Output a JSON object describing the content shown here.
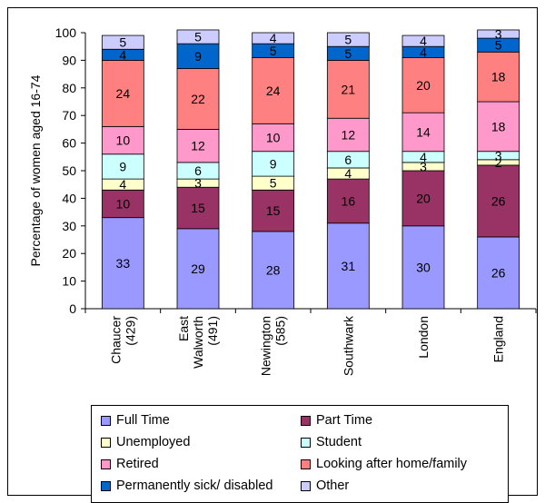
{
  "chart_data": {
    "type": "bar",
    "stacked": true,
    "ylabel": "Percentage of women aged 16-74",
    "ylim": [
      0,
      100
    ],
    "yticks": [
      0,
      10,
      20,
      30,
      40,
      50,
      60,
      70,
      80,
      90,
      100
    ],
    "categories": [
      [
        "Chaucer",
        "(429)"
      ],
      [
        "East",
        "Walworth",
        "(491)"
      ],
      [
        "Newington",
        "(585)"
      ],
      [
        "Southwark"
      ],
      [
        "London"
      ],
      [
        "England"
      ]
    ],
    "series": [
      {
        "name": "Full Time",
        "color": "#9999ff",
        "values": [
          33,
          29,
          28,
          31,
          30,
          26
        ]
      },
      {
        "name": "Part Time",
        "color": "#993366",
        "values": [
          10,
          15,
          15,
          16,
          20,
          26
        ]
      },
      {
        "name": "Unemployed",
        "color": "#ffffcc",
        "values": [
          4,
          3,
          5,
          4,
          3,
          2
        ]
      },
      {
        "name": "Student",
        "color": "#ccffff",
        "values": [
          9,
          6,
          9,
          6,
          4,
          3
        ]
      },
      {
        "name": "Retired",
        "color": "#ff99cc",
        "values": [
          10,
          12,
          10,
          12,
          14,
          18
        ]
      },
      {
        "name": "Looking after home/family",
        "color": "#ff8080",
        "values": [
          24,
          22,
          24,
          21,
          20,
          18
        ]
      },
      {
        "name": "Permanently sick/ disabled",
        "color": "#0066cc",
        "values": [
          4,
          9,
          5,
          5,
          4,
          5
        ]
      },
      {
        "name": "Other",
        "color": "#ccccff",
        "values": [
          5,
          5,
          4,
          5,
          4,
          3
        ]
      }
    ],
    "legend_position": "bottom",
    "grid": false
  }
}
